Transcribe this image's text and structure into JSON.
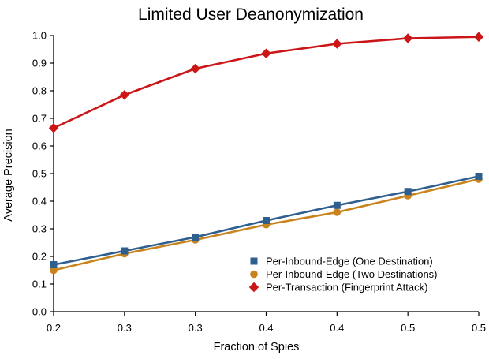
{
  "title": "Limited User Deanonymization",
  "chart_data": {
    "type": "line",
    "title": "Limited User Deanonymization",
    "xlabel": "Fraction of Spies",
    "ylabel": "Average Precision",
    "xlim": [
      0.2,
      0.5
    ],
    "ylim": [
      0.0,
      1.0
    ],
    "grid": false,
    "legend_position": "inside lower right",
    "x": [
      0.2,
      0.25,
      0.3,
      0.35,
      0.4,
      0.45,
      0.5
    ],
    "x_tick_labels": [
      "0.2",
      "0.3",
      "0.3",
      "0.4",
      "0.4",
      "0.5",
      "0.5"
    ],
    "y_ticks": [
      0.0,
      0.1,
      0.2,
      0.3,
      0.4,
      0.5,
      0.6,
      0.7,
      0.8,
      0.9,
      1.0
    ],
    "y_tick_labels": [
      "0.0",
      "0.1",
      "0.2",
      "0.3",
      "0.4",
      "0.5",
      "0.6",
      "0.7",
      "0.8",
      "0.9",
      "1.0"
    ],
    "series": [
      {
        "name": "Per-Inbound-Edge (One Destination)",
        "marker": "square",
        "color": "#2F5F8F",
        "values": [
          0.17,
          0.22,
          0.27,
          0.33,
          0.385,
          0.435,
          0.49
        ]
      },
      {
        "name": "Per-Inbound-Edge (Two Destinations)",
        "marker": "circle",
        "color": "#C9831D",
        "values": [
          0.15,
          0.21,
          0.26,
          0.315,
          0.36,
          0.42,
          0.48
        ]
      },
      {
        "name": "Per-Transaction (Fingerprint Attack)",
        "marker": "diamond",
        "color": "#CC1517",
        "values": [
          0.665,
          0.785,
          0.88,
          0.935,
          0.97,
          0.99,
          0.995
        ]
      }
    ],
    "colors": {
      "axis": "#000000",
      "text": "#000000",
      "background": "#ffffff"
    }
  }
}
